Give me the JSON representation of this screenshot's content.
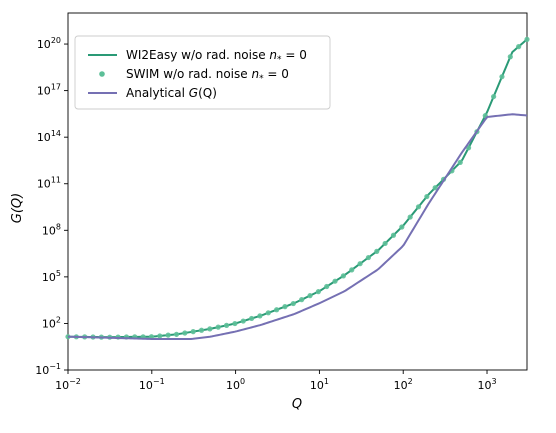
{
  "chart_data": {
    "type": "line",
    "xlabel": "Q",
    "ylabel": "G(Q)",
    "x_scale": "log",
    "y_scale": "log",
    "xlim": [
      0.01,
      3000
    ],
    "ylim": [
      0.1,
      1e+22
    ],
    "grid": false,
    "legend_position": "upper-left",
    "x_ticks": [
      {
        "value": 0.01,
        "base": "10",
        "exp": "−2"
      },
      {
        "value": 0.1,
        "base": "10",
        "exp": "−1"
      },
      {
        "value": 1,
        "base": "10",
        "exp": "0"
      },
      {
        "value": 10,
        "base": "10",
        "exp": "1"
      },
      {
        "value": 100,
        "base": "10",
        "exp": "2"
      },
      {
        "value": 1000,
        "base": "10",
        "exp": "3"
      }
    ],
    "y_ticks": [
      {
        "value": 0.1,
        "base": "10",
        "exp": "−1"
      },
      {
        "value": 100,
        "base": "10",
        "exp": "2"
      },
      {
        "value": 100000,
        "base": "10",
        "exp": "5"
      },
      {
        "value": 100000000.0,
        "base": "10",
        "exp": "8"
      },
      {
        "value": 100000000000.0,
        "base": "10",
        "exp": "11"
      },
      {
        "value": 100000000000000.0,
        "base": "10",
        "exp": "14"
      },
      {
        "value": 1e+17,
        "base": "10",
        "exp": "17"
      },
      {
        "value": 1e+20,
        "base": "10",
        "exp": "20"
      }
    ],
    "series": [
      {
        "name": "WI2Easy w/o rad. noise n* = 0",
        "style": "line",
        "color": "#2a9a76",
        "x": [
          0.01,
          0.03,
          0.1,
          0.2,
          0.5,
          1,
          2,
          5,
          10,
          20,
          50,
          100,
          200,
          500,
          1000,
          2000,
          3000
        ],
        "y": [
          14,
          13,
          14,
          20,
          45,
          100,
          320,
          2000,
          12000,
          130000,
          5000000,
          200000000.0,
          20000000000.0,
          3000000000000.0,
          4000000000000000.0,
          3e+19,
          2e+20
        ]
      },
      {
        "name": "SWIM w/o rad. noise n* = 0",
        "style": "markers",
        "color": "#5cbf98",
        "x": [
          0.01,
          0.03,
          0.1,
          0.2,
          0.5,
          1,
          2,
          5,
          10,
          20,
          50,
          100,
          200,
          500,
          1000,
          2000,
          3000
        ],
        "y": [
          14,
          13,
          14,
          20,
          45,
          100,
          320,
          2000,
          12000,
          130000,
          5000000,
          200000000.0,
          20000000000.0,
          3000000000000.0,
          4000000000000000.0,
          3e+19,
          2e+20
        ]
      },
      {
        "name": "Analytical G(Q)",
        "style": "line",
        "color": "#7570b3",
        "x": [
          0.01,
          0.03,
          0.1,
          0.3,
          0.5,
          1,
          2,
          5,
          10,
          20,
          50,
          100,
          200,
          500,
          1000,
          2000,
          3000
        ],
        "y": [
          14,
          12,
          10,
          10,
          14,
          30,
          80,
          400,
          2000,
          12000,
          300000,
          10000000.0,
          5000000000.0,
          10000000000000.0,
          2000000000000000.0,
          3000000000000000.0,
          2500000000000000.0
        ]
      }
    ],
    "legend": [
      {
        "label": "WI2Easy w/o rad. noise ",
        "math_n": "n",
        "math_sub": "*",
        "math_eq": " = 0"
      },
      {
        "label": "SWIM w/o rad. noise ",
        "math_n": "n",
        "math_sub": "*",
        "math_eq": " = 0"
      },
      {
        "label": "Analytical ",
        "math_n": "G",
        "math_sub": "",
        "math_eq": "(Q)"
      }
    ]
  }
}
